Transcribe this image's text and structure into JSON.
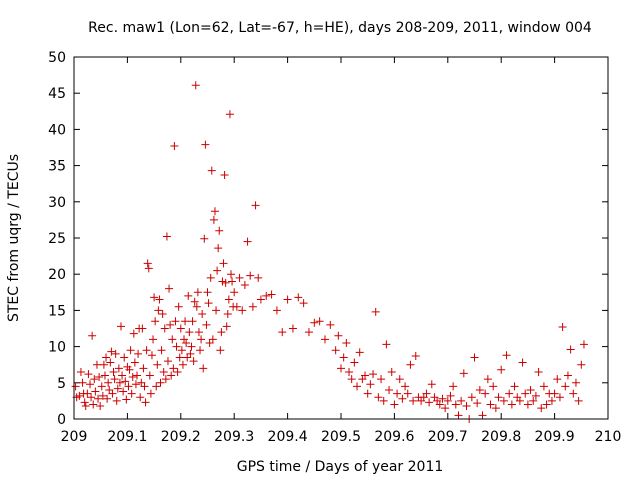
{
  "chart_data": {
    "type": "scatter",
    "title": "Rec. maw1 (Lon=62, Lat=-67, h=HE), days 208-209, 2011, window 004",
    "xlabel": "GPS time / Days of year 2011",
    "ylabel": "STEC from uqrg / TECUs",
    "xlim": [
      209,
      210
    ],
    "ylim": [
      0,
      50
    ],
    "xticks": [
      209,
      209.1,
      209.2,
      209.3,
      209.4,
      209.5,
      209.6,
      209.7,
      209.8,
      209.9,
      210
    ],
    "xtick_labels": [
      "209",
      "209.1",
      "209.2",
      "209.3",
      "209.4",
      "209.5",
      "209.6",
      "209.7",
      "209.8",
      "209.9",
      "210"
    ],
    "yticks": [
      0,
      5,
      10,
      15,
      20,
      25,
      30,
      35,
      40,
      45,
      50
    ],
    "ytick_labels": [
      "0",
      "5",
      "10",
      "15",
      "20",
      "25",
      "30",
      "35",
      "40",
      "45",
      "50"
    ],
    "grid": false,
    "marker": "+",
    "color": "#cc0000",
    "series": [
      {
        "name": "STEC",
        "points": [
          [
            209.003,
            4.5
          ],
          [
            209.005,
            3.0
          ],
          [
            209.01,
            3.2
          ],
          [
            209.013,
            6.5
          ],
          [
            209.016,
            5.0
          ],
          [
            209.018,
            3.5
          ],
          [
            209.02,
            2.3
          ],
          [
            209.022,
            1.8
          ],
          [
            209.025,
            3.5
          ],
          [
            209.027,
            6.2
          ],
          [
            209.03,
            4.8
          ],
          [
            209.032,
            3.0
          ],
          [
            209.034,
            11.5
          ],
          [
            209.036,
            2.0
          ],
          [
            209.038,
            5.5
          ],
          [
            209.04,
            3.8
          ],
          [
            209.043,
            7.5
          ],
          [
            209.045,
            2.8
          ],
          [
            209.047,
            5.8
          ],
          [
            209.049,
            1.8
          ],
          [
            209.052,
            4.5
          ],
          [
            209.054,
            3.2
          ],
          [
            209.056,
            7.5
          ],
          [
            209.058,
            6.0
          ],
          [
            209.06,
            8.5
          ],
          [
            209.062,
            2.8
          ],
          [
            209.064,
            5.0
          ],
          [
            209.066,
            4.0
          ],
          [
            209.068,
            7.8
          ],
          [
            209.07,
            9.3
          ],
          [
            209.072,
            3.5
          ],
          [
            209.074,
            6.5
          ],
          [
            209.076,
            5.5
          ],
          [
            209.078,
            9.0
          ],
          [
            209.08,
            2.5
          ],
          [
            209.082,
            4.2
          ],
          [
            209.084,
            7.0
          ],
          [
            209.086,
            5.0
          ],
          [
            209.088,
            12.8
          ],
          [
            209.09,
            6.0
          ],
          [
            209.092,
            3.8
          ],
          [
            209.094,
            8.5
          ],
          [
            209.096,
            5.2
          ],
          [
            209.098,
            2.7
          ],
          [
            209.1,
            7.2
          ],
          [
            209.102,
            4.5
          ],
          [
            209.104,
            6.8
          ],
          [
            209.106,
            9.5
          ],
          [
            209.108,
            3.5
          ],
          [
            209.11,
            5.8
          ],
          [
            209.112,
            11.8
          ],
          [
            209.114,
            7.8
          ],
          [
            209.116,
            4.8
          ],
          [
            209.118,
            6.0
          ],
          [
            209.12,
            9.0
          ],
          [
            209.122,
            12.5
          ],
          [
            209.124,
            3.0
          ],
          [
            209.126,
            5.0
          ],
          [
            209.128,
            12.5
          ],
          [
            209.13,
            7.0
          ],
          [
            209.132,
            4.5
          ],
          [
            209.134,
            2.3
          ],
          [
            209.136,
            9.5
          ],
          [
            209.138,
            21.5
          ],
          [
            209.14,
            20.8
          ],
          [
            209.142,
            6.0
          ],
          [
            209.144,
            3.5
          ],
          [
            209.146,
            8.8
          ],
          [
            209.148,
            11.0
          ],
          [
            209.15,
            16.8
          ],
          [
            209.152,
            13.5
          ],
          [
            209.154,
            4.5
          ],
          [
            209.156,
            7.5
          ],
          [
            209.158,
            15.0
          ],
          [
            209.16,
            16.5
          ],
          [
            209.162,
            5.0
          ],
          [
            209.164,
            9.5
          ],
          [
            209.166,
            14.5
          ],
          [
            209.168,
            6.5
          ],
          [
            209.17,
            12.5
          ],
          [
            209.172,
            5.5
          ],
          [
            209.174,
            25.2
          ],
          [
            209.176,
            8.0
          ],
          [
            209.178,
            18.0
          ],
          [
            209.18,
            13.0
          ],
          [
            209.182,
            6.0
          ],
          [
            209.184,
            11.0
          ],
          [
            209.186,
            7.0
          ],
          [
            209.188,
            37.7
          ],
          [
            209.19,
            13.5
          ],
          [
            209.192,
            10.0
          ],
          [
            209.194,
            6.5
          ],
          [
            209.196,
            15.5
          ],
          [
            209.198,
            8.5
          ],
          [
            209.2,
            12.5
          ],
          [
            209.202,
            9.5
          ],
          [
            209.204,
            7.5
          ],
          [
            209.206,
            11.0
          ],
          [
            209.208,
            13.5
          ],
          [
            209.21,
            10.5
          ],
          [
            209.212,
            8.5
          ],
          [
            209.214,
            17.0
          ],
          [
            209.216,
            12.0
          ],
          [
            209.218,
            9.0
          ],
          [
            209.22,
            10.0
          ],
          [
            209.222,
            13.5
          ],
          [
            209.224,
            8.0
          ],
          [
            209.226,
            16.2
          ],
          [
            209.228,
            46.1
          ],
          [
            209.23,
            15.5
          ],
          [
            209.232,
            17.5
          ],
          [
            209.234,
            12.0
          ],
          [
            209.236,
            9.5
          ],
          [
            209.238,
            11.0
          ],
          [
            209.24,
            14.5
          ],
          [
            209.242,
            7.0
          ],
          [
            209.244,
            24.9
          ],
          [
            209.246,
            37.9
          ],
          [
            209.248,
            13.0
          ],
          [
            209.25,
            17.5
          ],
          [
            209.252,
            16.0
          ],
          [
            209.254,
            10.5
          ],
          [
            209.256,
            19.5
          ],
          [
            209.258,
            34.3
          ],
          [
            209.26,
            11.0
          ],
          [
            209.262,
            27.5
          ],
          [
            209.264,
            28.7
          ],
          [
            209.266,
            15.0
          ],
          [
            209.268,
            20.5
          ],
          [
            209.27,
            23.6
          ],
          [
            209.272,
            26.0
          ],
          [
            209.274,
            9.5
          ],
          [
            209.276,
            12.0
          ],
          [
            209.278,
            19.0
          ],
          [
            209.28,
            21.5
          ],
          [
            209.282,
            33.7
          ],
          [
            209.284,
            18.8
          ],
          [
            209.286,
            12.8
          ],
          [
            209.288,
            14.5
          ],
          [
            209.29,
            16.5
          ],
          [
            209.292,
            42.1
          ],
          [
            209.294,
            20.0
          ],
          [
            209.296,
            19.0
          ],
          [
            209.298,
            15.5
          ],
          [
            209.3,
            17.5
          ],
          [
            209.305,
            15.5
          ],
          [
            209.31,
            19.5
          ],
          [
            209.315,
            15.0
          ],
          [
            209.32,
            18.5
          ],
          [
            209.325,
            24.5
          ],
          [
            209.33,
            19.8
          ],
          [
            209.335,
            15.5
          ],
          [
            209.34,
            29.5
          ],
          [
            209.345,
            19.5
          ],
          [
            209.35,
            16.5
          ],
          [
            209.36,
            17.0
          ],
          [
            209.37,
            17.2
          ],
          [
            209.38,
            15.0
          ],
          [
            209.39,
            12.0
          ],
          [
            209.4,
            16.5
          ],
          [
            209.41,
            12.5
          ],
          [
            209.42,
            16.8
          ],
          [
            209.43,
            16.0
          ],
          [
            209.44,
            12.0
          ],
          [
            209.45,
            13.3
          ],
          [
            209.46,
            13.5
          ],
          [
            209.47,
            11.0
          ],
          [
            209.48,
            13.0
          ],
          [
            209.49,
            9.5
          ],
          [
            209.495,
            11.5
          ],
          [
            209.5,
            7.0
          ],
          [
            209.505,
            8.5
          ],
          [
            209.51,
            10.5
          ],
          [
            209.515,
            6.5
          ],
          [
            209.52,
            5.5
          ],
          [
            209.525,
            7.8
          ],
          [
            209.53,
            4.5
          ],
          [
            209.535,
            9.2
          ],
          [
            209.54,
            5.5
          ],
          [
            209.545,
            6.0
          ],
          [
            209.55,
            3.5
          ],
          [
            209.555,
            4.8
          ],
          [
            209.56,
            6.2
          ],
          [
            209.565,
            14.8
          ],
          [
            209.57,
            3.0
          ],
          [
            209.575,
            5.5
          ],
          [
            209.58,
            2.5
          ],
          [
            209.585,
            10.3
          ],
          [
            209.59,
            4.0
          ],
          [
            209.595,
            6.5
          ],
          [
            209.6,
            2.0
          ],
          [
            209.605,
            3.5
          ],
          [
            209.61,
            5.5
          ],
          [
            209.615,
            2.8
          ],
          [
            209.62,
            4.5
          ],
          [
            209.625,
            3.5
          ],
          [
            209.63,
            7.5
          ],
          [
            209.635,
            2.5
          ],
          [
            209.64,
            8.7
          ],
          [
            209.645,
            3.0
          ],
          [
            209.65,
            2.5
          ],
          [
            209.655,
            3.0
          ],
          [
            209.66,
            3.5
          ],
          [
            209.665,
            2.3
          ],
          [
            209.67,
            4.8
          ],
          [
            209.675,
            3.0
          ],
          [
            209.68,
            2.5
          ],
          [
            209.685,
            2.0
          ],
          [
            209.69,
            2.8
          ],
          [
            209.695,
            1.5
          ],
          [
            209.7,
            2.5
          ],
          [
            209.705,
            3.2
          ],
          [
            209.71,
            4.5
          ],
          [
            209.715,
            2.0
          ],
          [
            209.72,
            0.5
          ],
          [
            209.725,
            2.5
          ],
          [
            209.73,
            6.3
          ],
          [
            209.735,
            1.8
          ],
          [
            209.74,
            0.0
          ],
          [
            209.745,
            3.0
          ],
          [
            209.75,
            8.5
          ],
          [
            209.755,
            2.2
          ],
          [
            209.76,
            4.0
          ],
          [
            209.765,
            0.5
          ],
          [
            209.77,
            3.5
          ],
          [
            209.775,
            5.5
          ],
          [
            209.78,
            2.0
          ],
          [
            209.785,
            4.5
          ],
          [
            209.79,
            1.5
          ],
          [
            209.795,
            3.0
          ],
          [
            209.8,
            6.8
          ],
          [
            209.805,
            2.5
          ],
          [
            209.81,
            8.8
          ],
          [
            209.815,
            3.5
          ],
          [
            209.82,
            2.0
          ],
          [
            209.825,
            4.5
          ],
          [
            209.83,
            3.0
          ],
          [
            209.835,
            2.5
          ],
          [
            209.84,
            7.8
          ],
          [
            209.845,
            3.5
          ],
          [
            209.85,
            2.0
          ],
          [
            209.855,
            4.0
          ],
          [
            209.86,
            2.5
          ],
          [
            209.865,
            3.2
          ],
          [
            209.87,
            6.5
          ],
          [
            209.875,
            1.5
          ],
          [
            209.88,
            4.5
          ],
          [
            209.885,
            2.0
          ],
          [
            209.89,
            3.5
          ],
          [
            209.895,
            2.5
          ],
          [
            209.9,
            3.5
          ],
          [
            209.905,
            5.5
          ],
          [
            209.91,
            3.0
          ],
          [
            209.915,
            12.7
          ],
          [
            209.92,
            4.5
          ],
          [
            209.925,
            6.0
          ],
          [
            209.93,
            9.6
          ],
          [
            209.935,
            3.5
          ],
          [
            209.94,
            5.0
          ],
          [
            209.945,
            2.5
          ],
          [
            209.95,
            7.5
          ],
          [
            209.955,
            10.3
          ]
        ]
      }
    ]
  }
}
